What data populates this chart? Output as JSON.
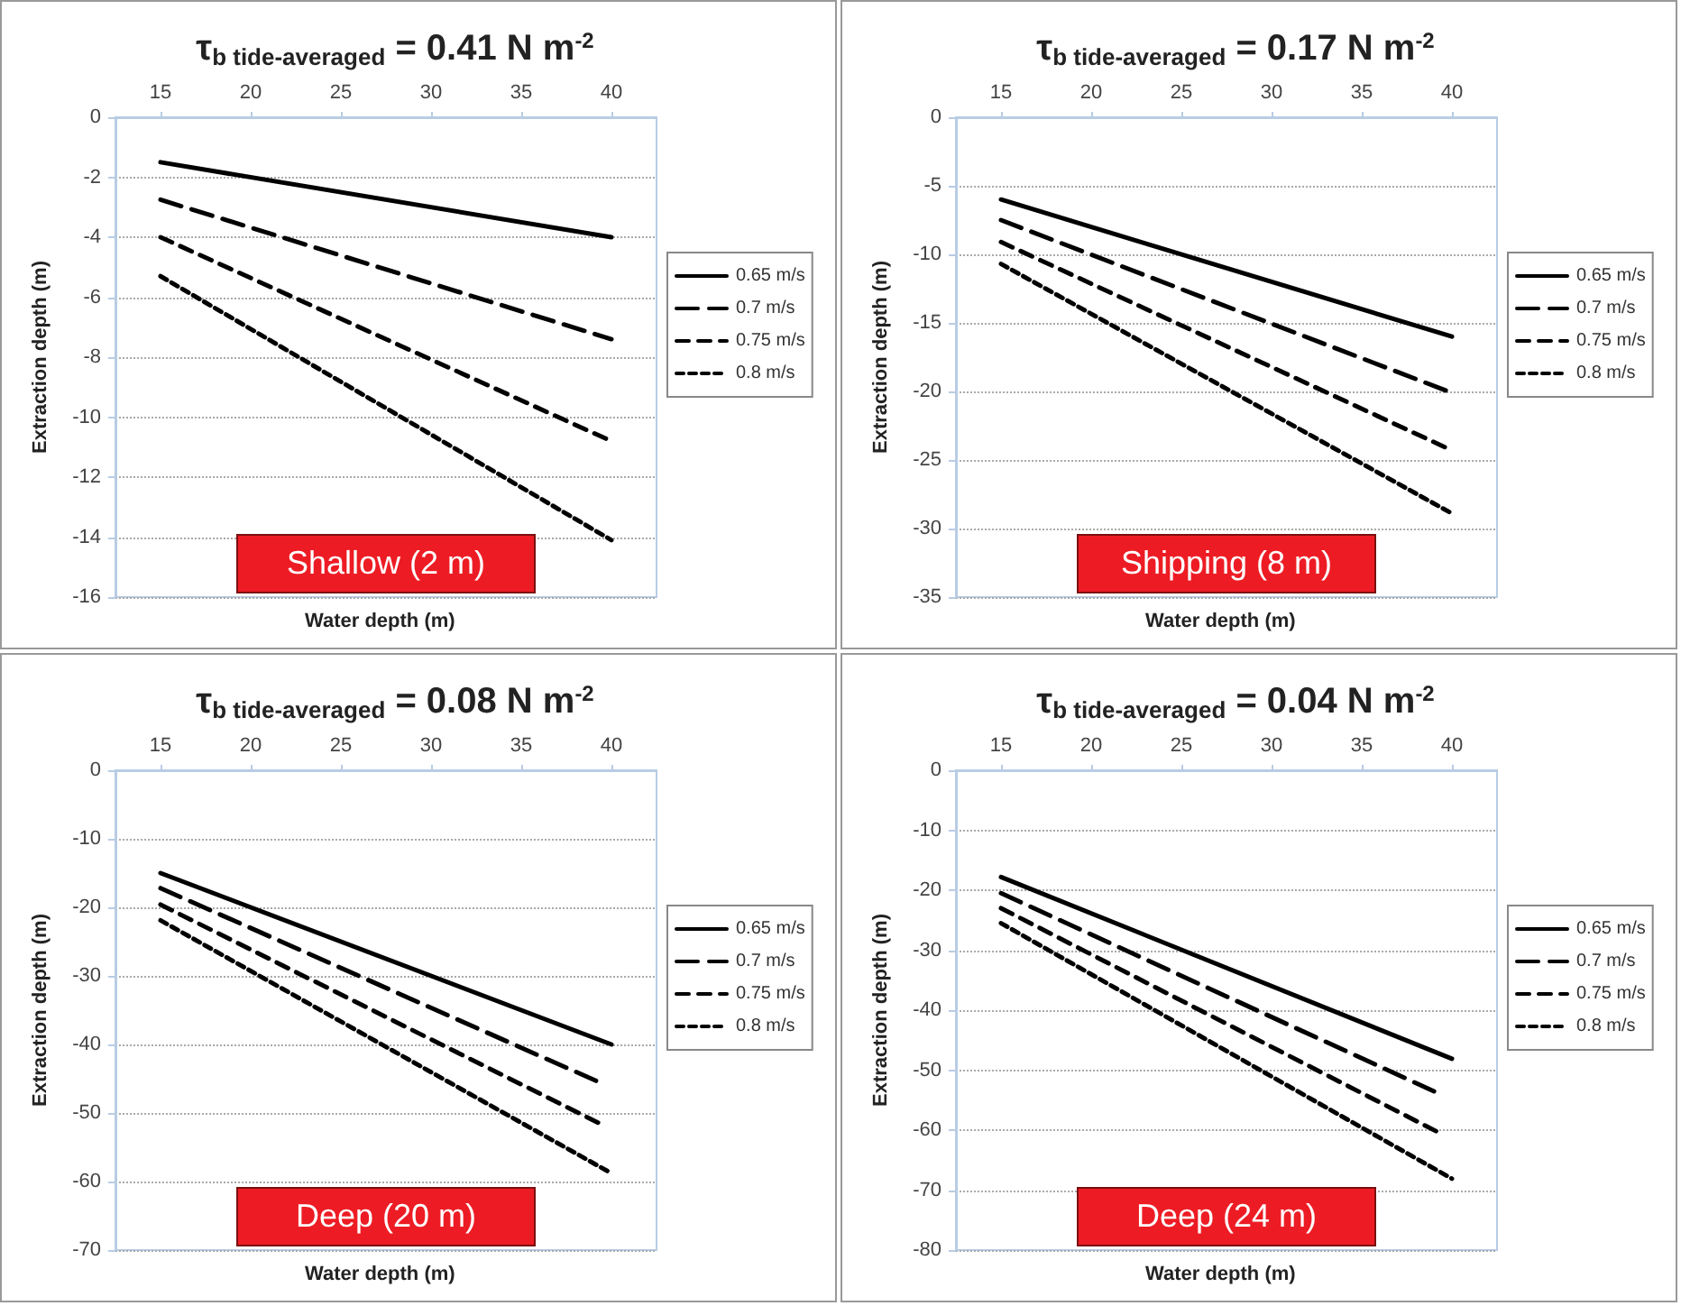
{
  "chart_data": [
    {
      "type": "line",
      "title": "τ$_{b tide-averaged}$ = 0.41 N m$^{-2}$",
      "xlabel": "Water depth (m)",
      "ylabel": "Extraction depth (m)",
      "xlim": [
        12.5,
        42.5
      ],
      "xticks": [
        15,
        20,
        25,
        30,
        35,
        40
      ],
      "ylim": [
        -16,
        0
      ],
      "yticks": [
        -16,
        -14,
        -12,
        -10,
        -8,
        -6,
        -4,
        -2,
        0
      ],
      "grid": "y",
      "legend": "right",
      "annotations": [
        "Shallow (2 m)"
      ],
      "series": [
        {
          "name": "0.65 m/s",
          "color": "#000000",
          "line_style": "solid",
          "x": [
            15,
            40
          ],
          "values": [
            -1.5,
            -4.0
          ]
        },
        {
          "name": "0.7 m/s",
          "color": "#000000",
          "line_style": "dashed",
          "x": [
            15,
            40
          ],
          "values": [
            -2.75,
            -7.4
          ]
        },
        {
          "name": "0.75 m/s",
          "color": "#000000",
          "line_style": "dashed",
          "x": [
            15,
            40
          ],
          "values": [
            -4.0,
            -10.8
          ]
        },
        {
          "name": "0.8 m/s",
          "color": "#000000",
          "line_style": "dotted",
          "x": [
            15,
            40
          ],
          "values": [
            -5.3,
            -14.1
          ]
        }
      ]
    },
    {
      "type": "line",
      "title": "τ$_{b tide-averaged}$ = 0.17 N m$^{-2}$",
      "xlabel": "Water depth (m)",
      "ylabel": "Extraction depth (m)",
      "xlim": [
        12.5,
        42.5
      ],
      "xticks": [
        15,
        20,
        25,
        30,
        35,
        40
      ],
      "ylim": [
        -35,
        0
      ],
      "yticks": [
        -35,
        -30,
        -25,
        -20,
        -15,
        -10,
        -5,
        0
      ],
      "grid": "y",
      "legend": "right",
      "annotations": [
        "Shipping (8 m)"
      ],
      "series": [
        {
          "name": "0.65 m/s",
          "color": "#000000",
          "line_style": "solid",
          "x": [
            15,
            23,
            40
          ],
          "values": [
            -6.0,
            -9.2,
            -16.0
          ]
        },
        {
          "name": "0.7 m/s",
          "color": "#000000",
          "line_style": "dashed",
          "x": [
            15,
            40
          ],
          "values": [
            -7.5,
            -20.1
          ]
        },
        {
          "name": "0.75 m/s",
          "color": "#000000",
          "line_style": "dashed",
          "x": [
            15,
            40
          ],
          "values": [
            -9.1,
            -24.3
          ]
        },
        {
          "name": "0.8 m/s",
          "color": "#000000",
          "line_style": "dotted",
          "x": [
            15,
            40
          ],
          "values": [
            -10.7,
            -28.9
          ]
        }
      ]
    },
    {
      "type": "line",
      "title": "τ$_{b tide-averaged}$ = 0.08 N m$^{-2}$",
      "xlabel": "Water depth (m)",
      "ylabel": "Extraction depth (m)",
      "xlim": [
        12.5,
        42.5
      ],
      "xticks": [
        15,
        20,
        25,
        30,
        35,
        40
      ],
      "ylim": [
        -70,
        0
      ],
      "yticks": [
        -70,
        -60,
        -50,
        -40,
        -30,
        -20,
        -10,
        0
      ],
      "grid": "y",
      "legend": "right",
      "annotations": [
        "Deep (20 m)"
      ],
      "series": [
        {
          "name": "0.65 m/s",
          "color": "#000000",
          "line_style": "solid",
          "x": [
            15,
            40
          ],
          "values": [
            -15.0,
            -40.0
          ]
        },
        {
          "name": "0.7 m/s",
          "color": "#000000",
          "line_style": "dashed",
          "x": [
            15,
            39.4
          ],
          "values": [
            -17.2,
            -45.6
          ]
        },
        {
          "name": "0.75 m/s",
          "color": "#000000",
          "line_style": "dashed",
          "x": [
            15,
            39.4
          ],
          "values": [
            -19.6,
            -51.6
          ]
        },
        {
          "name": "0.8 m/s",
          "color": "#000000",
          "line_style": "dotted",
          "x": [
            15,
            40
          ],
          "values": [
            -21.9,
            -58.8
          ]
        }
      ]
    },
    {
      "type": "line",
      "title": "τ$_{b tide-averaged}$ = 0.04 N m$^{-2}$",
      "xlabel": "Water depth (m)",
      "ylabel": "Extraction depth (m)",
      "xlim": [
        12.5,
        42.5
      ],
      "xticks": [
        15,
        20,
        25,
        30,
        35,
        40
      ],
      "ylim": [
        -80,
        0
      ],
      "yticks": [
        -80,
        -70,
        -60,
        -50,
        -40,
        -30,
        -20,
        -10,
        0
      ],
      "grid": "y",
      "legend": "right",
      "annotations": [
        "Deep (24 m)"
      ],
      "series": [
        {
          "name": "0.65 m/s",
          "color": "#000000",
          "line_style": "solid",
          "x": [
            15,
            40
          ],
          "values": [
            -17.8,
            -48.1
          ]
        },
        {
          "name": "0.7 m/s",
          "color": "#000000",
          "line_style": "dashed",
          "x": [
            15,
            39.2
          ],
          "values": [
            -20.5,
            -53.8
          ]
        },
        {
          "name": "0.75 m/s",
          "color": "#000000",
          "line_style": "dashed",
          "x": [
            15,
            39.2
          ],
          "values": [
            -23.0,
            -60.3
          ]
        },
        {
          "name": "0.8 m/s",
          "color": "#000000",
          "line_style": "dotted",
          "x": [
            15,
            40
          ],
          "values": [
            -25.5,
            -68.1
          ]
        }
      ]
    }
  ]
}
